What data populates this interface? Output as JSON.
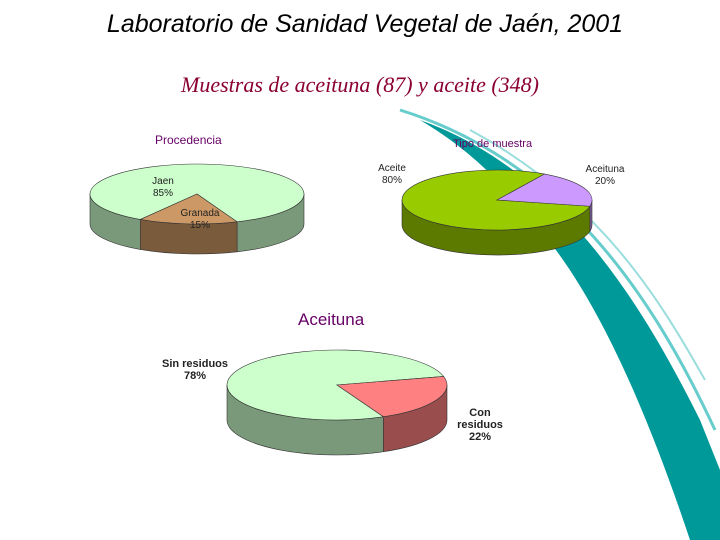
{
  "slide": {
    "title": "Laboratorio de Sanidad Vegetal de Jaén, 2001",
    "subtitle": "Muestras de aceituna (87) y aceite (348)"
  },
  "chart_data": [
    {
      "type": "pie",
      "title": "Procedencia",
      "categories": [
        "Jaen",
        "Granada"
      ],
      "values": [
        85,
        15
      ],
      "value_labels": [
        "85%",
        "15%"
      ],
      "colors": [
        "#ccffcc",
        "#cc9966"
      ]
    },
    {
      "type": "pie",
      "title": "Tipo de muestra",
      "categories": [
        "Aceite",
        "Aceituna"
      ],
      "values": [
        80,
        20
      ],
      "value_labels": [
        "80%",
        "20%"
      ],
      "colors": [
        "#99cc00",
        "#cc99ff"
      ]
    },
    {
      "type": "pie",
      "title": "Aceituna",
      "categories": [
        "Sin residuos",
        "Con residuos"
      ],
      "values": [
        78,
        22
      ],
      "value_labels": [
        "78%",
        "22%"
      ],
      "colors": [
        "#ccffcc",
        "#ff8080"
      ]
    }
  ]
}
